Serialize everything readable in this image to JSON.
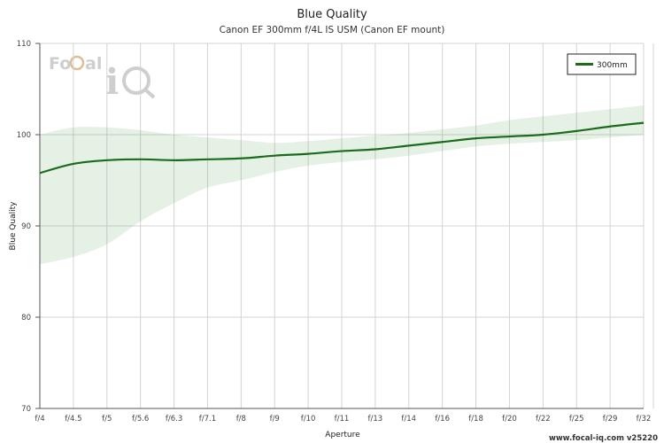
{
  "chart_data": {
    "type": "line",
    "title": "Blue Quality",
    "subtitle": "Canon EF 300mm f/4L IS USM (Canon EF mount)",
    "xlabel": "Aperture",
    "ylabel": "Blue Quality",
    "ylim": [
      70,
      110
    ],
    "yticks": [
      70,
      80,
      90,
      100,
      110
    ],
    "categories": [
      "f/4",
      "f/4.5",
      "f/5",
      "f/5.6",
      "f/6.3",
      "f/7.1",
      "f/8",
      "f/9",
      "f/10",
      "f/11",
      "f/13",
      "f/14",
      "f/16",
      "f/18",
      "f/20",
      "f/22",
      "f/25",
      "f/29",
      "f/32"
    ],
    "grid": true,
    "legend_position": "top-right",
    "series": [
      {
        "name": "300mm",
        "color": "#1a6b1a",
        "values": [
          95.8,
          96.8,
          97.2,
          97.3,
          97.2,
          97.3,
          97.4,
          97.7,
          97.9,
          98.2,
          98.4,
          98.8,
          99.2,
          99.6,
          99.8,
          100.0,
          100.4,
          100.9,
          101.3
        ],
        "band_upper": [
          100.0,
          100.8,
          100.8,
          100.5,
          100.0,
          99.7,
          99.4,
          99.1,
          99.3,
          99.6,
          99.9,
          100.2,
          100.6,
          101.0,
          101.6,
          102.0,
          102.4,
          102.8,
          103.2
        ],
        "band_lower": [
          85.8,
          86.6,
          88.0,
          90.5,
          92.5,
          94.2,
          95.0,
          95.9,
          96.6,
          97.0,
          97.3,
          97.7,
          98.2,
          98.7,
          99.0,
          99.2,
          99.4,
          99.7,
          100.0
        ],
        "band_color": "#2e8b2e"
      }
    ]
  },
  "logo": {
    "text_left": "Focal",
    "text_right": "iQ"
  },
  "footer": "www.focal-iq.com  v25220"
}
